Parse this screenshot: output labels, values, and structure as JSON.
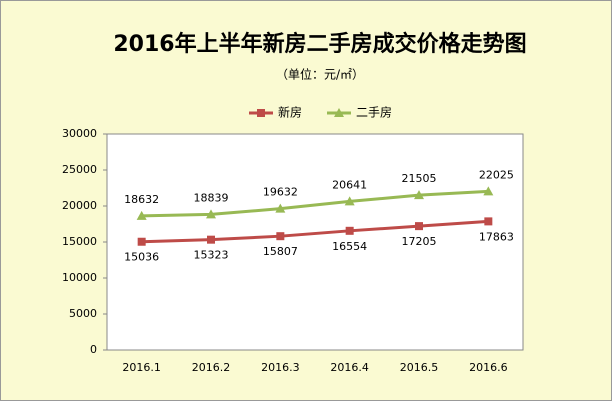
{
  "chart_data": {
    "type": "line",
    "title": "2016年上半年新房二手房成交价格走势图",
    "subtitle": "（单位：元/㎡）",
    "categories": [
      "2016.1",
      "2016.2",
      "2016.3",
      "2016.4",
      "2016.5",
      "2016.6"
    ],
    "series": [
      {
        "name": "新房",
        "color": "#be4b48",
        "marker": "square",
        "values": [
          15036,
          15323,
          15807,
          16554,
          17205,
          17863
        ]
      },
      {
        "name": "二手房",
        "color": "#98b954",
        "marker": "triangle",
        "values": [
          18632,
          18839,
          19632,
          20641,
          21505,
          22025
        ]
      }
    ],
    "ylim": [
      0,
      30000
    ],
    "yticks": [
      0,
      5000,
      10000,
      15000,
      20000,
      25000,
      30000
    ],
    "legend": "top"
  }
}
